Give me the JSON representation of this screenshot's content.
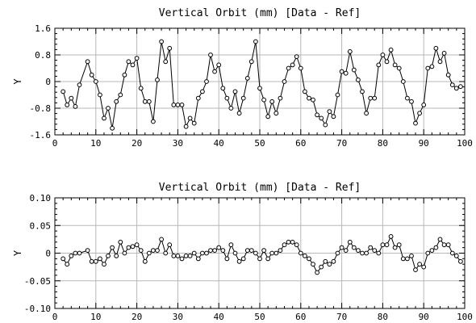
{
  "chart_data": [
    {
      "type": "line",
      "title": "Vertical Orbit (mm) [Data - Ref]",
      "ylabel": "Y",
      "xlabel": "",
      "xlim": [
        0,
        100
      ],
      "ylim": [
        -1.6,
        1.6
      ],
      "grid": true,
      "xticks": [
        0,
        10,
        20,
        30,
        40,
        50,
        60,
        70,
        80,
        90,
        100
      ],
      "yticks": [
        -1.6,
        -0.8,
        0,
        0.8,
        1.6
      ],
      "ytick_labels": [
        "-1.6",
        "-0.8",
        "0",
        "0.8",
        "1.6"
      ],
      "x": [
        2,
        3,
        4,
        5,
        6,
        8,
        9,
        10,
        11,
        12,
        13,
        14,
        15,
        16,
        17,
        18,
        19,
        20,
        21,
        22,
        23,
        24,
        25,
        26,
        27,
        28,
        29,
        30,
        31,
        32,
        33,
        34,
        35,
        36,
        37,
        38,
        39,
        40,
        41,
        42,
        43,
        44,
        45,
        46,
        47,
        48,
        49,
        50,
        51,
        52,
        53,
        54,
        55,
        56,
        57,
        58,
        59,
        60,
        61,
        62,
        63,
        64,
        65,
        66,
        67,
        68,
        69,
        70,
        71,
        72,
        73,
        74,
        75,
        76,
        77,
        78,
        79,
        80,
        81,
        82,
        83,
        84,
        85,
        86,
        87,
        88,
        89,
        90,
        91,
        92,
        93,
        94,
        95,
        96,
        97,
        98,
        99
      ],
      "values": [
        -0.3,
        -0.7,
        -0.5,
        -0.75,
        -0.1,
        0.6,
        0.2,
        0.0,
        -0.4,
        -1.1,
        -0.8,
        -1.4,
        -0.6,
        -0.4,
        0.2,
        0.6,
        0.5,
        0.7,
        -0.2,
        -0.6,
        -0.6,
        -1.2,
        0.05,
        1.2,
        0.6,
        1.0,
        -0.7,
        -0.7,
        -0.7,
        -1.35,
        -1.1,
        -1.25,
        -0.5,
        -0.3,
        0.0,
        0.8,
        0.3,
        0.5,
        -0.2,
        -0.5,
        -0.8,
        -0.3,
        -0.95,
        -0.5,
        0.1,
        0.6,
        1.2,
        -0.2,
        -0.55,
        -1.05,
        -0.6,
        -0.95,
        -0.5,
        0.0,
        0.4,
        0.5,
        0.75,
        0.4,
        -0.3,
        -0.5,
        -0.55,
        -1.0,
        -1.1,
        -1.3,
        -0.9,
        -1.05,
        -0.4,
        0.3,
        0.25,
        0.9,
        0.35,
        0.05,
        -0.3,
        -0.95,
        -0.5,
        -0.5,
        0.5,
        0.8,
        0.6,
        0.95,
        0.5,
        0.4,
        0.0,
        -0.5,
        -0.6,
        -1.25,
        -0.95,
        -0.7,
        0.4,
        0.45,
        1.0,
        0.6,
        0.85,
        0.2,
        -0.1,
        -0.2,
        -0.15
      ],
      "point_markers": true
    },
    {
      "type": "line",
      "title": "Vertical Orbit (mm) [Data - Ref]",
      "ylabel": "Y",
      "xlabel": "",
      "xlim": [
        0,
        100
      ],
      "ylim": [
        -0.1,
        0.1
      ],
      "grid": true,
      "xticks": [
        0,
        10,
        20,
        30,
        40,
        50,
        60,
        70,
        80,
        90,
        100
      ],
      "yticks": [
        -0.1,
        -0.05,
        0,
        0.05,
        0.1
      ],
      "ytick_labels": [
        "-0.10",
        "-0.05",
        "0",
        "0.05",
        "0.10"
      ],
      "x": [
        2,
        3,
        4,
        5,
        6,
        8,
        9,
        10,
        11,
        12,
        13,
        14,
        15,
        16,
        17,
        18,
        19,
        20,
        21,
        22,
        23,
        24,
        25,
        26,
        27,
        28,
        29,
        30,
        31,
        32,
        33,
        34,
        35,
        36,
        37,
        38,
        39,
        40,
        41,
        42,
        43,
        44,
        45,
        46,
        47,
        48,
        49,
        50,
        51,
        52,
        53,
        54,
        55,
        56,
        57,
        58,
        59,
        60,
        61,
        62,
        63,
        64,
        65,
        66,
        67,
        68,
        69,
        70,
        71,
        72,
        73,
        74,
        75,
        76,
        77,
        78,
        79,
        80,
        81,
        82,
        83,
        84,
        85,
        86,
        87,
        88,
        89,
        90,
        91,
        92,
        93,
        94,
        95,
        96,
        97,
        98,
        99
      ],
      "values": [
        -0.01,
        -0.02,
        -0.005,
        0.0,
        0.0,
        0.005,
        -0.015,
        -0.015,
        -0.01,
        -0.02,
        -0.005,
        0.01,
        -0.005,
        0.02,
        0.0,
        0.01,
        0.012,
        0.015,
        0.005,
        -0.015,
        0.0,
        0.005,
        0.005,
        0.025,
        0.0,
        0.015,
        -0.005,
        -0.005,
        -0.01,
        -0.005,
        -0.005,
        0.0,
        -0.01,
        0.0,
        0.0,
        0.005,
        0.005,
        0.01,
        0.005,
        -0.01,
        0.015,
        0.0,
        -0.015,
        -0.01,
        0.005,
        0.005,
        0.0,
        -0.01,
        0.005,
        -0.01,
        0.0,
        0.0,
        0.005,
        0.015,
        0.02,
        0.02,
        0.015,
        0.0,
        -0.005,
        -0.01,
        -0.02,
        -0.035,
        -0.025,
        -0.015,
        -0.02,
        -0.015,
        0.0,
        0.01,
        0.005,
        0.02,
        0.01,
        0.005,
        0.0,
        0.0,
        0.01,
        0.005,
        0.0,
        0.015,
        0.015,
        0.03,
        0.01,
        0.015,
        -0.01,
        -0.01,
        -0.005,
        -0.03,
        -0.02,
        -0.025,
        0.0,
        0.005,
        0.01,
        0.025,
        0.015,
        0.015,
        0.0,
        -0.005,
        -0.015
      ]
    }
  ]
}
